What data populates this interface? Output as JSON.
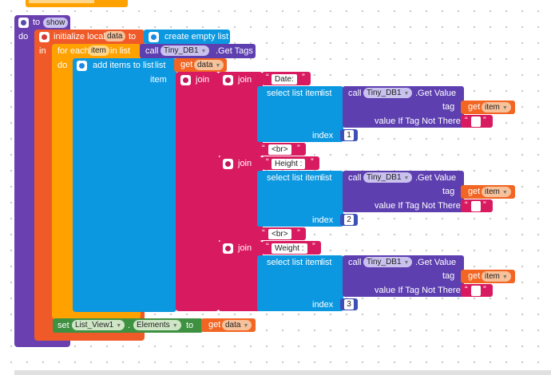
{
  "colors": {
    "procedure": "#6a3fb0",
    "local": "#f05a28",
    "loop": "#ffa200",
    "list": "#0b98e0",
    "text": "#d81b60",
    "db": "#5d3fb0",
    "math": "#3f4fb8",
    "set": "#3f9142",
    "get": "#f26522"
  },
  "procedure": {
    "to": "to",
    "name": "show",
    "do": "do"
  },
  "local": {
    "label": "initialize local",
    "name": "data",
    "to": "to",
    "in": "in"
  },
  "create_list": "create empty list",
  "foreach": {
    "label": "for each",
    "var": "item",
    "in_list": "in list",
    "do": "do"
  },
  "get_tags": {
    "call": "call",
    "component": "Tiny_DB1",
    "method": ".Get Tags"
  },
  "add_items": {
    "label": "add items to list",
    "list": "list",
    "item": "item",
    "get": "get",
    "var": "data"
  },
  "join_outer": "join",
  "rows": [
    {
      "join": "join",
      "label": "Date:",
      "select": "select list item",
      "list": "list",
      "index_label": "index",
      "index": "1",
      "call": "call",
      "component": "Tiny_DB1",
      "method": ".Get Value",
      "tag": "tag",
      "get": "get",
      "var": "item",
      "not_there": "value If Tag Not There",
      "br": "<br>"
    },
    {
      "join": "join",
      "label": "Height :",
      "select": "select list item",
      "list": "list",
      "index_label": "index",
      "index": "2",
      "call": "call",
      "component": "Tiny_DB1",
      "method": ".Get Value",
      "tag": "tag",
      "get": "get",
      "var": "item",
      "not_there": "value If Tag Not There",
      "br": "<br>"
    },
    {
      "join": "join",
      "label": "Weight :",
      "select": "select list item",
      "list": "list",
      "index_label": "index",
      "index": "3",
      "call": "call",
      "component": "Tiny_DB1",
      "method": ".Get Value",
      "tag": "tag",
      "get": "get",
      "var": "item",
      "not_there": "value If Tag Not There"
    }
  ],
  "set_block": {
    "set": "set",
    "component": "List_View1",
    "dot": ".",
    "property": "Elements",
    "to": "to",
    "get": "get",
    "var": "data"
  }
}
